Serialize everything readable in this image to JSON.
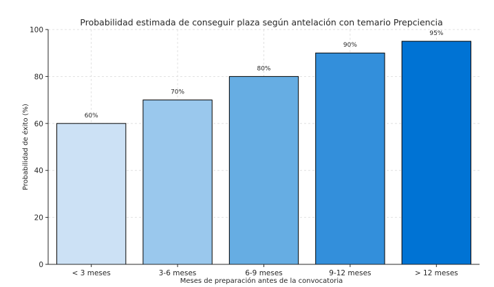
{
  "chart_data": {
    "type": "bar",
    "title": "Probabilidad estimada de conseguir plaza según antelación con temario Prepciencia",
    "xlabel": "Meses de preparación antes de la convocatoria",
    "ylabel": "Probabilidad de éxito (%)",
    "categories": [
      "< 3 meses",
      "3-6 meses",
      "6-9 meses",
      "9-12 meses",
      "> 12 meses"
    ],
    "values": [
      60,
      70,
      80,
      90,
      95
    ],
    "value_labels": [
      "60%",
      "70%",
      "80%",
      "90%",
      "95%"
    ],
    "colors": [
      "#cce1f5",
      "#9ac8ed",
      "#66ade3",
      "#338fdb",
      "#0073d4"
    ],
    "ylim": [
      0,
      100
    ],
    "yticks": [
      0,
      20,
      40,
      60,
      80,
      100
    ],
    "ytick_labels": [
      "0",
      "20",
      "40",
      "60",
      "80",
      "100"
    ],
    "grid": true,
    "legend": false
  }
}
